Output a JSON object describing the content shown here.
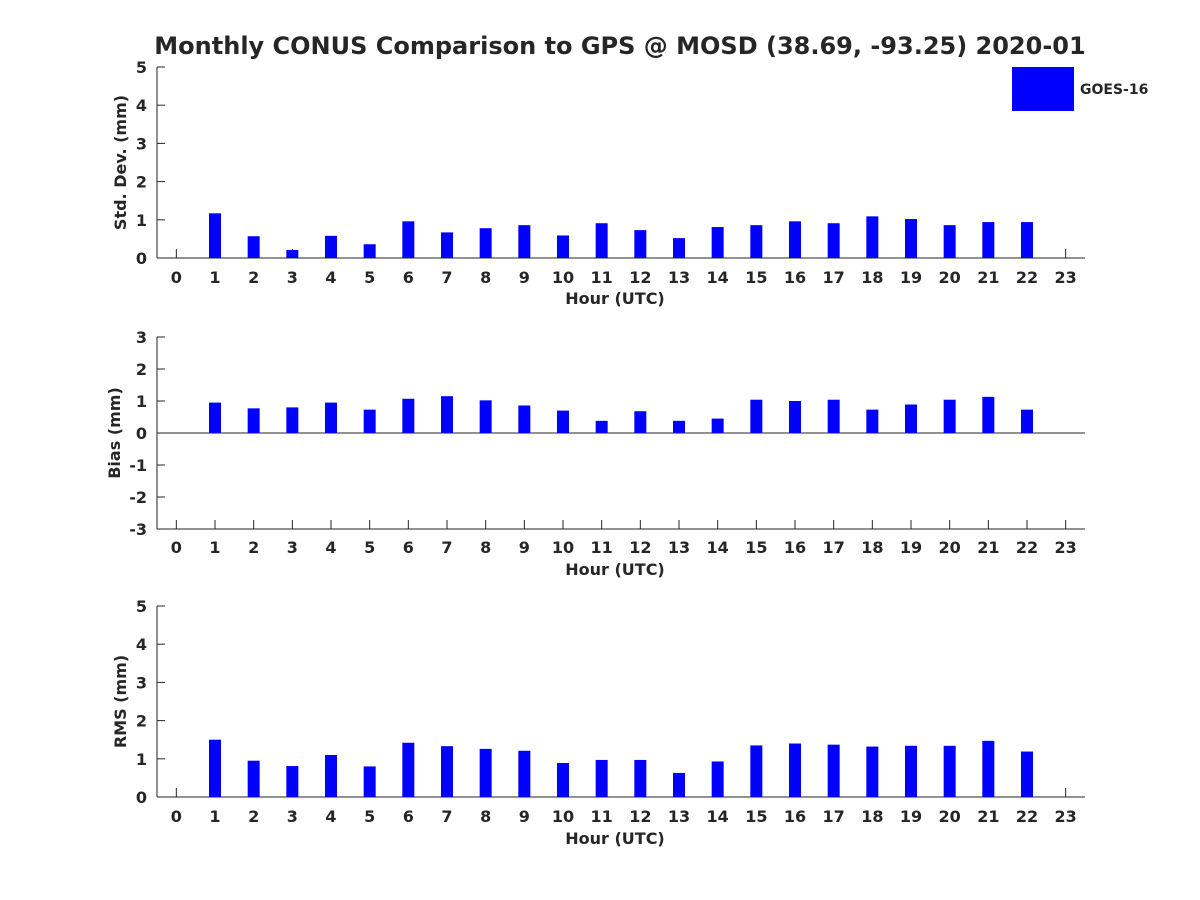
{
  "title": "Monthly CONUS Comparison to GPS @ MOSD (38.69, -93.25) 2020-01",
  "legend": {
    "label": "GOES-16",
    "color": "#0000ff"
  },
  "chart_data": [
    {
      "type": "bar",
      "title": "Monthly CONUS Comparison to GPS @ MOSD (38.69, -93.25) 2020-01",
      "xlabel": "Hour (UTC)",
      "ylabel": "Std. Dev. (mm)",
      "ylim": [
        0,
        5
      ],
      "yticks": [
        "0",
        "1",
        "2",
        "3",
        "4",
        "5"
      ],
      "xlim": [
        -0.5,
        23.5
      ],
      "xticks": [
        "0",
        "1",
        "2",
        "3",
        "4",
        "5",
        "6",
        "7",
        "8",
        "9",
        "10",
        "11",
        "12",
        "13",
        "14",
        "15",
        "16",
        "17",
        "18",
        "19",
        "20",
        "21",
        "22",
        "23"
      ],
      "categories": [
        0,
        1,
        2,
        3,
        4,
        5,
        6,
        7,
        8,
        9,
        10,
        11,
        12,
        13,
        14,
        15,
        16,
        17,
        18,
        19,
        20,
        21,
        22,
        23
      ],
      "series": [
        {
          "name": "GOES-16",
          "color": "#0000ff",
          "values": [
            null,
            1.17,
            0.57,
            0.21,
            0.58,
            0.36,
            0.96,
            0.67,
            0.78,
            0.86,
            0.59,
            0.91,
            0.73,
            0.52,
            0.81,
            0.86,
            0.96,
            0.91,
            1.09,
            1.02,
            0.86,
            0.94,
            0.94,
            null
          ]
        }
      ],
      "legend_position": "top-right",
      "grid": false
    },
    {
      "type": "bar",
      "xlabel": "Hour (UTC)",
      "ylabel": "Bias (mm)",
      "ylim": [
        -3,
        3
      ],
      "yticks": [
        "-3",
        "-2",
        "-1",
        "0",
        "1",
        "2",
        "3"
      ],
      "xlim": [
        -0.5,
        23.5
      ],
      "xticks": [
        "0",
        "1",
        "2",
        "3",
        "4",
        "5",
        "6",
        "7",
        "8",
        "9",
        "10",
        "11",
        "12",
        "13",
        "14",
        "15",
        "16",
        "17",
        "18",
        "19",
        "20",
        "21",
        "22",
        "23"
      ],
      "categories": [
        0,
        1,
        2,
        3,
        4,
        5,
        6,
        7,
        8,
        9,
        10,
        11,
        12,
        13,
        14,
        15,
        16,
        17,
        18,
        19,
        20,
        21,
        22,
        23
      ],
      "series": [
        {
          "name": "GOES-16",
          "color": "#0000ff",
          "values": [
            null,
            0.95,
            0.77,
            0.8,
            0.95,
            0.73,
            1.07,
            1.15,
            1.02,
            0.86,
            0.7,
            0.38,
            0.68,
            0.38,
            0.45,
            1.04,
            1.0,
            1.04,
            0.73,
            0.89,
            1.04,
            1.13,
            0.73,
            null
          ]
        }
      ],
      "zero_line": true,
      "grid": false
    },
    {
      "type": "bar",
      "xlabel": "Hour (UTC)",
      "ylabel": "RMS (mm)",
      "ylim": [
        0,
        5
      ],
      "yticks": [
        "0",
        "1",
        "2",
        "3",
        "4",
        "5"
      ],
      "xlim": [
        -0.5,
        23.5
      ],
      "xticks": [
        "0",
        "1",
        "2",
        "3",
        "4",
        "5",
        "6",
        "7",
        "8",
        "9",
        "10",
        "11",
        "12",
        "13",
        "14",
        "15",
        "16",
        "17",
        "18",
        "19",
        "20",
        "21",
        "22",
        "23"
      ],
      "categories": [
        0,
        1,
        2,
        3,
        4,
        5,
        6,
        7,
        8,
        9,
        10,
        11,
        12,
        13,
        14,
        15,
        16,
        17,
        18,
        19,
        20,
        21,
        22,
        23
      ],
      "series": [
        {
          "name": "GOES-16",
          "color": "#0000ff",
          "values": [
            null,
            1.5,
            0.95,
            0.81,
            1.1,
            0.8,
            1.42,
            1.33,
            1.26,
            1.21,
            0.89,
            0.97,
            0.97,
            0.63,
            0.93,
            1.35,
            1.4,
            1.37,
            1.32,
            1.34,
            1.34,
            1.47,
            1.19,
            null
          ]
        }
      ],
      "grid": false
    }
  ]
}
